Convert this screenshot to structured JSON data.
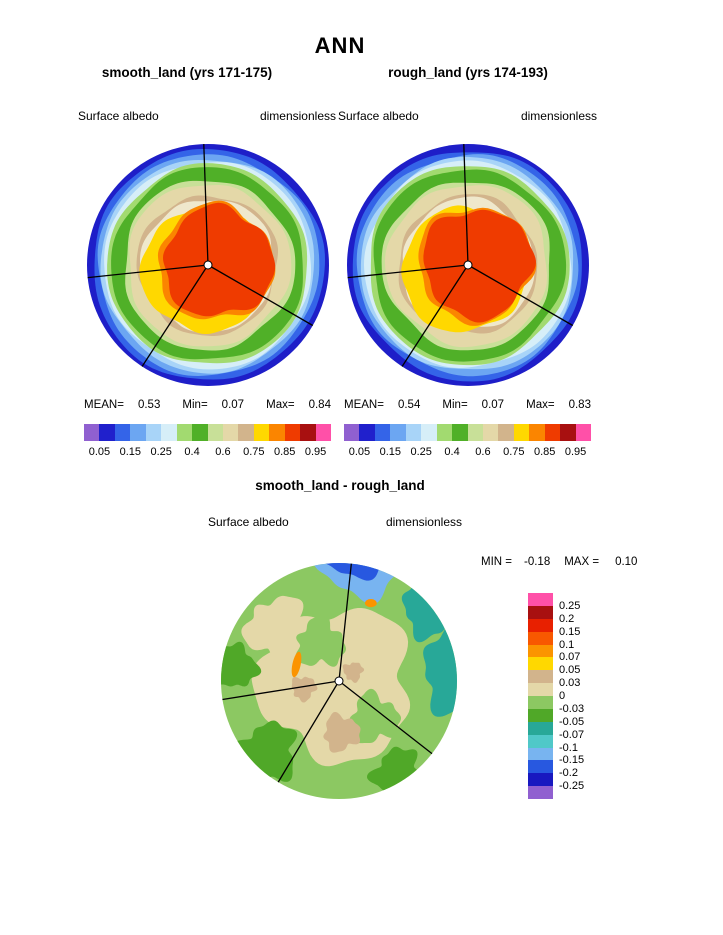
{
  "page": {
    "title": "ANN"
  },
  "panels": [
    {
      "subtitle": "smooth_land (yrs 171-175)",
      "field_label": "Surface albedo",
      "units_label": "dimensionless",
      "stats": {
        "mean_label": "MEAN=",
        "mean": "0.53",
        "min_label": "Min=",
        "min": "0.07",
        "max_label": "Max=",
        "max": "0.84"
      }
    },
    {
      "subtitle": "rough_land (yrs 174-193)",
      "field_label": "Surface albedo",
      "units_label": "dimensionless",
      "stats": {
        "mean_label": "MEAN=",
        "mean": "0.54",
        "min_label": "Min=",
        "min": "0.07",
        "max_label": "Max=",
        "max": "0.83"
      }
    }
  ],
  "diff": {
    "title": "smooth_land - rough_land",
    "field_label": "Surface albedo",
    "units_label": "dimensionless",
    "min_label": "MIN =",
    "min": "-0.18",
    "max_label": "MAX =",
    "max": "0.10"
  },
  "colorbar_h": {
    "labels": [
      "0.05",
      "0.15",
      "0.25",
      "0.4",
      "0.6",
      "0.75",
      "0.85",
      "0.95"
    ],
    "colors": [
      "#9060d0",
      "#2020cc",
      "#3464e8",
      "#6ca6f2",
      "#a8d4f8",
      "#d6eef8",
      "#a2da70",
      "#50b028",
      "#c8e098",
      "#e4d8a8",
      "#d2b48c",
      "#ffd800",
      "#fb8500",
      "#ef3b00",
      "#a81010",
      "#ff50a8"
    ]
  },
  "colorbar_v": {
    "labels": [
      "0.25",
      "0.2",
      "0.15",
      "0.1",
      "0.07",
      "0.05",
      "0.03",
      "0",
      "-0.03",
      "-0.05",
      "-0.07",
      "-0.1",
      "-0.15",
      "-0.2",
      "-0.25"
    ],
    "colors": [
      "#ff50a8",
      "#a81010",
      "#e82000",
      "#f85800",
      "#fb9400",
      "#ffd800",
      "#d2b48c",
      "#e4d8a8",
      "#8cc862",
      "#50a828",
      "#28a898",
      "#50c8c8",
      "#78b4f0",
      "#2858e0",
      "#1818c0",
      "#9060d0"
    ]
  },
  "chart_data": [
    {
      "type": "heatmap",
      "projection": "polar_stereographic_contour_map",
      "title": "smooth_land (yrs 171-175)",
      "variable": "Surface albedo",
      "units": "dimensionless",
      "stats": {
        "mean": 0.53,
        "min": 0.07,
        "max": 0.84
      },
      "contour_levels": [
        0.05,
        0.1,
        0.15,
        0.2,
        0.25,
        0.3,
        0.4,
        0.5,
        0.6,
        0.7,
        0.75,
        0.8,
        0.85,
        0.9,
        0.95
      ],
      "labeled_levels": [
        0.05,
        0.15,
        0.25,
        0.4,
        0.6,
        0.75,
        0.85,
        0.95
      ],
      "legend_position": "bottom",
      "sector_lines": [
        92,
        -30,
        186,
        237
      ],
      "render_layers": [
        {
          "r": 1.03,
          "amp": 0,
          "seed": 0,
          "color": "#1e1ec8"
        },
        {
          "r": 0.955,
          "amp": 0.022,
          "seed": 1.3,
          "color": "#3464e8"
        },
        {
          "r": 0.915,
          "amp": 0.026,
          "seed": 2.1,
          "color": "#6ca6f2"
        },
        {
          "r": 0.884,
          "amp": 0.026,
          "seed": 3.4,
          "color": "#a8d4f8"
        },
        {
          "r": 0.856,
          "amp": 0.026,
          "seed": 4.2,
          "color": "#d6eef8"
        },
        {
          "r": 0.83,
          "amp": 0.03,
          "seed": 5.7,
          "color": "#a2da70"
        },
        {
          "r": 0.798,
          "amp": 0.035,
          "seed": 6.1,
          "color": "#50b028"
        },
        {
          "r": 0.705,
          "amp": 0.05,
          "seed": 7.9,
          "color": "#c8e098"
        },
        {
          "r": 0.672,
          "amp": 0.05,
          "seed": 8.3,
          "color": "#e4d8a8"
        },
        {
          "r": 0.578,
          "amp": 0.06,
          "seed": 9.8,
          "color": "#d2b48c"
        },
        {
          "r": 0.548,
          "amp": 0.06,
          "seed": 10.4,
          "color": "#efe8cc"
        },
        {
          "r": 0.515,
          "amp": 0.07,
          "seed": 11.2,
          "dx": -0.03,
          "dy": 0.04,
          "color": "#ffd800"
        },
        {
          "r": 0.478,
          "amp": 0.11,
          "seed": 13.0,
          "dx": 0.065,
          "dy": -0.015,
          "color": "#fb8500"
        },
        {
          "r": 0.452,
          "amp": 0.12,
          "seed": 13.2,
          "dx": 0.085,
          "dy": -0.02,
          "color": "#ef3b00"
        }
      ]
    },
    {
      "type": "heatmap",
      "projection": "polar_stereographic_contour_map",
      "title": "rough_land (yrs 174-193)",
      "variable": "Surface albedo",
      "units": "dimensionless",
      "stats": {
        "mean": 0.54,
        "min": 0.07,
        "max": 0.83
      },
      "contour_levels": [
        0.05,
        0.1,
        0.15,
        0.2,
        0.25,
        0.3,
        0.4,
        0.5,
        0.6,
        0.7,
        0.75,
        0.8,
        0.85,
        0.9,
        0.95
      ],
      "labeled_levels": [
        0.05,
        0.15,
        0.25,
        0.4,
        0.6,
        0.75,
        0.85,
        0.95
      ],
      "legend_position": "bottom",
      "sector_lines": [
        92,
        -30,
        186,
        237
      ],
      "render_layers": [
        {
          "r": 1.03,
          "amp": 0,
          "seed": 0,
          "color": "#1e1ec8"
        },
        {
          "r": 0.952,
          "amp": 0.024,
          "seed": 3.7,
          "color": "#3464e8"
        },
        {
          "r": 0.912,
          "amp": 0.028,
          "seed": 4.5,
          "color": "#6ca6f2"
        },
        {
          "r": 0.882,
          "amp": 0.028,
          "seed": 5.8,
          "color": "#a8d4f8"
        },
        {
          "r": 0.854,
          "amp": 0.028,
          "seed": 6.6,
          "color": "#d6eef8"
        },
        {
          "r": 0.828,
          "amp": 0.032,
          "seed": 8.1,
          "color": "#a2da70"
        },
        {
          "r": 0.795,
          "amp": 0.037,
          "seed": 8.5,
          "color": "#50b028"
        },
        {
          "r": 0.7,
          "amp": 0.05,
          "seed": 10.3,
          "color": "#c8e098"
        },
        {
          "r": 0.668,
          "amp": 0.05,
          "seed": 10.7,
          "color": "#e4d8a8"
        },
        {
          "r": 0.574,
          "amp": 0.06,
          "seed": 12.2,
          "color": "#d2b48c"
        },
        {
          "r": 0.545,
          "amp": 0.06,
          "seed": 12.8,
          "color": "#efe8cc"
        },
        {
          "r": 0.512,
          "amp": 0.07,
          "seed": 13.6,
          "dx": -0.035,
          "dy": 0.045,
          "color": "#ffd800"
        },
        {
          "r": 0.475,
          "amp": 0.11,
          "seed": 15.4,
          "dx": 0.06,
          "dy": -0.01,
          "color": "#fb8500"
        },
        {
          "r": 0.45,
          "amp": 0.12,
          "seed": 15.6,
          "dx": 0.08,
          "dy": -0.015,
          "color": "#ef3b00"
        }
      ]
    },
    {
      "type": "heatmap",
      "projection": "polar_stereographic_contour_map",
      "title": "smooth_land - rough_land",
      "variable": "Surface albedo",
      "units": "dimensionless",
      "stats": {
        "min": -0.18,
        "max": 0.1
      },
      "contour_levels": [
        -0.25,
        -0.2,
        -0.15,
        -0.1,
        -0.07,
        -0.05,
        -0.03,
        0,
        0.03,
        0.05,
        0.07,
        0.1,
        0.15,
        0.2,
        0.25
      ],
      "legend_position": "right",
      "sector_lines": [
        84,
        -38,
        189,
        239
      ],
      "render_layers": [
        {
          "r": 1.03,
          "amp": 0,
          "seed": 0,
          "color": "#8cc862"
        },
        {
          "r": 0.64,
          "amp": 0.22,
          "seed": 10.7,
          "dx": -0.02,
          "dy": 0.03,
          "color": "#e4d8a8"
        },
        {
          "r": 0.26,
          "amp": 0.3,
          "seed": 11.3,
          "dx": -0.52,
          "dy": -0.44,
          "color": "#e4d8a8"
        },
        {
          "r": 0.2,
          "amp": 0.35,
          "seed": 12.8,
          "dx": -0.16,
          "dy": -0.32,
          "color": "#8cc862"
        },
        {
          "r": 0.2,
          "amp": 0.35,
          "seed": 13.6,
          "dx": 0.3,
          "dy": 0.32,
          "color": "#8cc862"
        },
        {
          "r": 0.15,
          "amp": 0.3,
          "seed": 14.2,
          "dx": 0.02,
          "dy": 0.44,
          "color": "#d2b48c"
        },
        {
          "r": 0.1,
          "amp": 0.3,
          "seed": 15.5,
          "dx": -0.3,
          "dy": 0.06,
          "color": "#d2b48c"
        },
        {
          "r": 0.08,
          "amp": 0.3,
          "seed": 16.1,
          "dx": 0.12,
          "dy": -0.08,
          "color": "#d2b48c"
        },
        {
          "r": 0.24,
          "amp": 0.35,
          "seed": 17.3,
          "dx": -0.6,
          "dy": 0.6,
          "color": "#50a828"
        },
        {
          "r": 0.2,
          "amp": 0.35,
          "seed": 18.1,
          "dx": 0.5,
          "dy": 0.78,
          "color": "#50a828"
        },
        {
          "r": 0.18,
          "amp": 0.3,
          "seed": 19.4,
          "dx": -0.88,
          "dy": -0.12,
          "color": "#50a828"
        },
        {
          "r": 0.34,
          "amp": 0.3,
          "seed": 20.6,
          "dx": 1.04,
          "dy": -0.08,
          "color": "#28a898"
        },
        {
          "r": 0.24,
          "amp": 0.3,
          "seed": 21.1,
          "dx": 0.78,
          "dy": -0.62,
          "color": "#28a898"
        },
        {
          "r": 0.38,
          "amp": 0.22,
          "seed": 22.9,
          "dx": 0.18,
          "dy": -1.1,
          "color": "#78b4f0"
        },
        {
          "r": 0.32,
          "amp": 0.18,
          "seed": 23.4,
          "dx": 0.12,
          "dy": -1.2,
          "color": "#2858e0"
        },
        {
          "shape": "ellipse",
          "rx": 0.035,
          "ry": 0.11,
          "rot": 12,
          "dx": -0.36,
          "dy": -0.14,
          "color": "#fb9400"
        },
        {
          "shape": "ellipse",
          "rx": 0.05,
          "ry": 0.035,
          "rot": 0,
          "dx": 0.27,
          "dy": -0.66,
          "color": "#fb9400"
        }
      ]
    }
  ]
}
